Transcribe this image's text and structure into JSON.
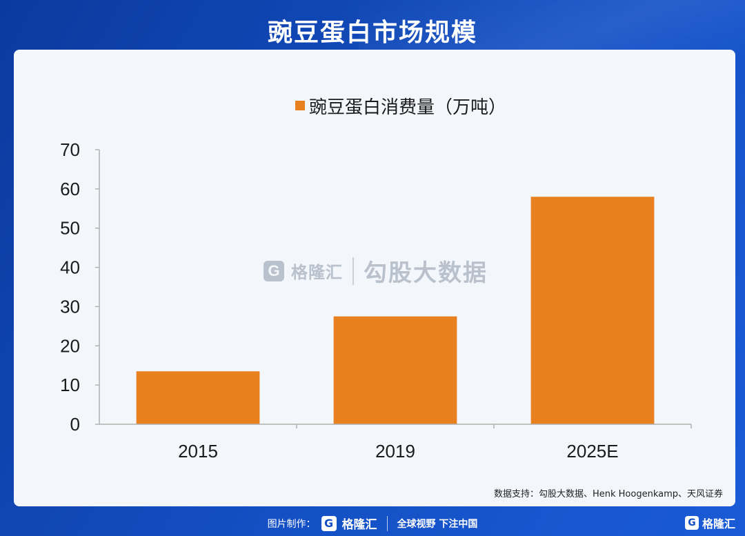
{
  "header": {
    "title": "豌豆蛋白市场规模"
  },
  "legend": {
    "label": "豌豆蛋白消费量（万吨）",
    "color": "#e8801f"
  },
  "watermark": {
    "logo": "G",
    "brand": "格隆汇",
    "text": "勾股大数据"
  },
  "source": "数据支持：勾股大数据、Henk Hoogenkamp、天风证券",
  "footer": {
    "prefix": "图片制作：",
    "logo": "G",
    "brand": "格隆汇",
    "slogan": "全球视野 下注中国"
  },
  "corner": {
    "logo": "G",
    "brand": "格隆汇"
  },
  "colors": {
    "background": "#1450c4",
    "card": "#f3f6fb",
    "bar": "#e8801f"
  },
  "chart_data": {
    "type": "bar",
    "title": "",
    "categories": [
      "2015",
      "2019",
      "2025E"
    ],
    "series": [
      {
        "name": "豌豆蛋白消费量（万吨）",
        "values": [
          13.5,
          27.5,
          58
        ]
      }
    ],
    "ylim": [
      0,
      70
    ],
    "yticks": [
      0,
      10,
      20,
      30,
      40,
      50,
      60,
      70
    ],
    "xlabel": "",
    "ylabel": "",
    "grid": false,
    "legend_position": "top-center"
  }
}
